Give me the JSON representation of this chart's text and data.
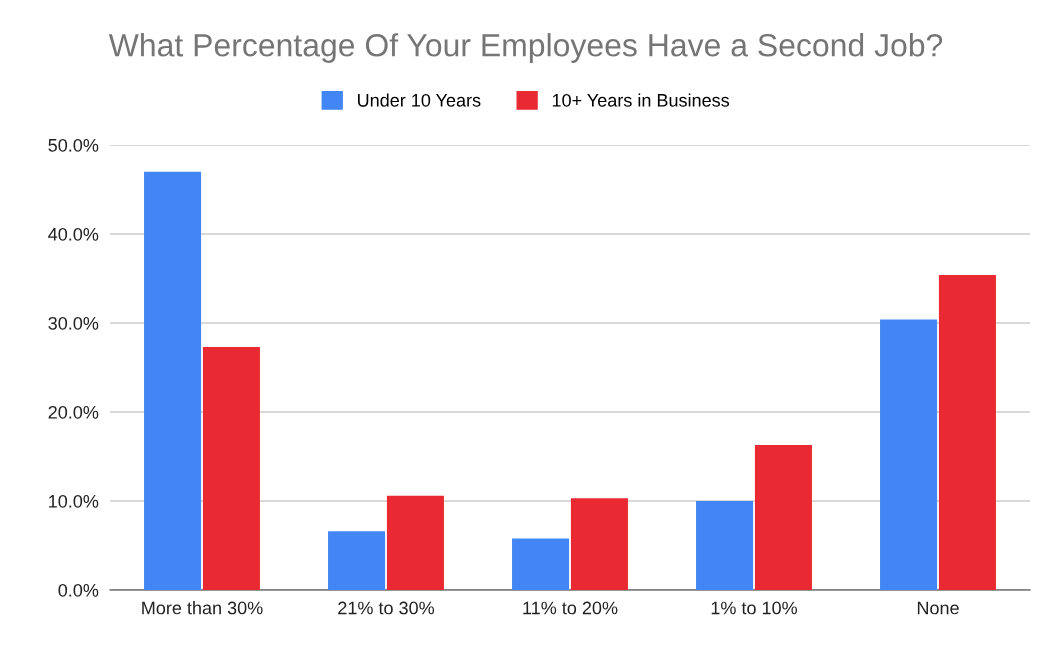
{
  "chart_data": {
    "type": "bar",
    "title": "What Percentage Of Your Employees Have a Second Job?",
    "categories": [
      "More than 30%",
      "21% to 30%",
      "11% to 20%",
      "1% to 10%",
      "None"
    ],
    "series": [
      {
        "name": "Under 10 Years",
        "color": "#4285f4",
        "values": [
          47.0,
          6.6,
          5.8,
          10.0,
          30.4
        ]
      },
      {
        "name": "10+ Years in Business",
        "color": "#ea2a33",
        "values": [
          27.3,
          10.6,
          10.3,
          16.3,
          35.4
        ]
      }
    ],
    "ylim": [
      0,
      50
    ],
    "yticks": [
      {
        "value": 0,
        "label": "0.0%"
      },
      {
        "value": 10,
        "label": "10.0%"
      },
      {
        "value": 20,
        "label": "20.0%"
      },
      {
        "value": 30,
        "label": "30.0%"
      },
      {
        "value": 40,
        "label": "40.0%"
      },
      {
        "value": 50,
        "label": "50.0%"
      }
    ],
    "grid": "y",
    "legend": "top"
  }
}
